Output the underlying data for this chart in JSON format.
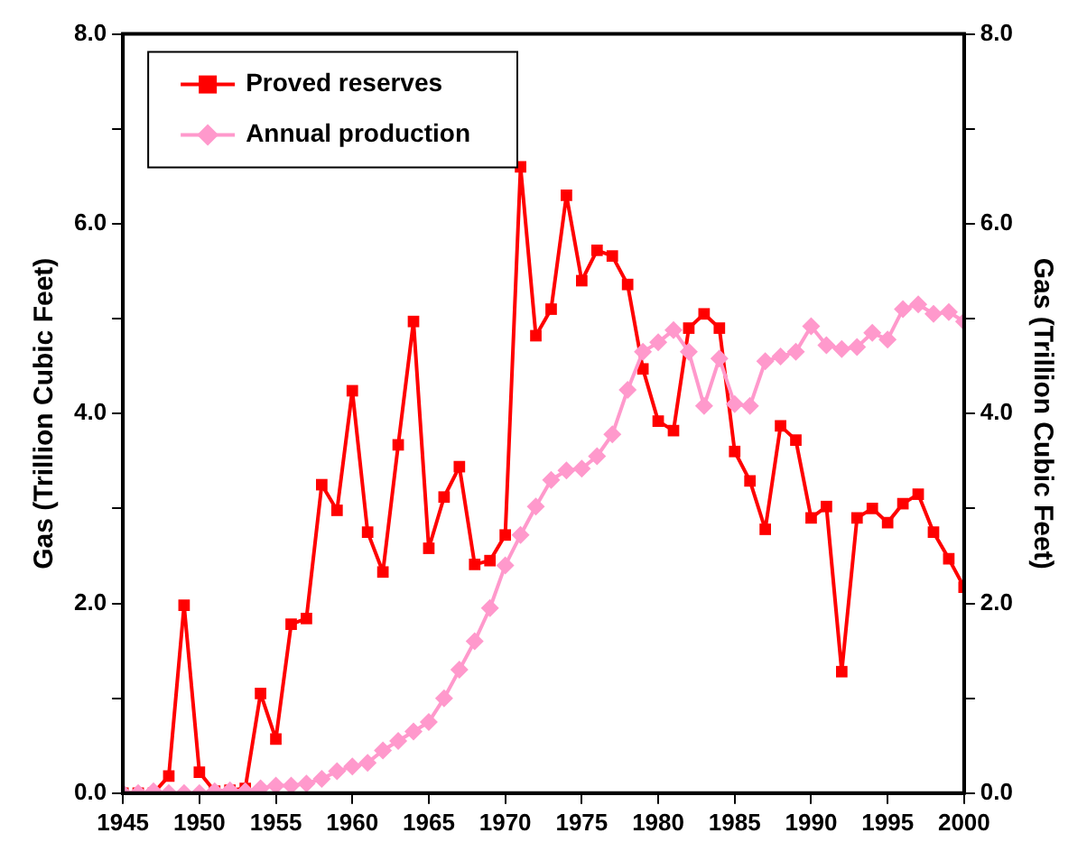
{
  "chart_data": {
    "type": "line",
    "x": [
      1945,
      1946,
      1947,
      1948,
      1949,
      1950,
      1951,
      1952,
      1953,
      1954,
      1955,
      1956,
      1957,
      1958,
      1959,
      1960,
      1961,
      1962,
      1963,
      1964,
      1965,
      1966,
      1967,
      1968,
      1969,
      1970,
      1971,
      1972,
      1973,
      1974,
      1975,
      1976,
      1977,
      1978,
      1979,
      1980,
      1981,
      1982,
      1983,
      1984,
      1985,
      1986,
      1987,
      1988,
      1989,
      1990,
      1991,
      1992,
      1993,
      1994,
      1995,
      1996,
      1997,
      1998,
      1999,
      2000
    ],
    "series": [
      {
        "name": "Proved reserves",
        "color": "#ff0000",
        "marker": "square",
        "values": [
          0,
          0,
          0,
          0.18,
          1.98,
          0.22,
          0.02,
          0.03,
          0.05,
          1.05,
          0.57,
          1.78,
          1.84,
          3.25,
          2.98,
          4.24,
          2.75,
          2.33,
          3.67,
          4.97,
          2.58,
          3.12,
          3.44,
          2.41,
          2.45,
          2.72,
          6.6,
          4.82,
          5.1,
          6.3,
          5.4,
          5.72,
          5.66,
          5.36,
          4.47,
          3.92,
          3.82,
          4.9,
          5.05,
          4.9,
          3.6,
          3.29,
          2.78,
          3.87,
          3.72,
          2.9,
          3.02,
          1.28,
          2.9,
          3.0,
          2.85,
          3.05,
          3.15,
          2.75,
          2.47,
          2.17
        ]
      },
      {
        "name": "Annual production",
        "color": "#ff99cc",
        "marker": "diamond",
        "values": [
          0,
          0,
          0.02,
          0,
          0,
          0,
          0.02,
          0.03,
          0.02,
          0.05,
          0.08,
          0.08,
          0.1,
          0.15,
          0.23,
          0.28,
          0.32,
          0.45,
          0.55,
          0.65,
          0.75,
          1.0,
          1.3,
          1.6,
          1.95,
          2.4,
          2.72,
          3.02,
          3.3,
          3.4,
          3.42,
          3.55,
          3.78,
          4.25,
          4.65,
          4.75,
          4.88,
          4.65,
          4.08,
          4.58,
          4.1,
          4.08,
          4.55,
          4.6,
          4.65,
          4.92,
          4.72,
          4.68,
          4.7,
          4.85,
          4.78,
          5.1,
          5.15,
          5.05,
          5.07,
          4.97
        ]
      }
    ],
    "xlim": [
      1945,
      2000
    ],
    "xticks": [
      1945,
      1950,
      1955,
      1960,
      1965,
      1970,
      1975,
      1980,
      1985,
      1990,
      1995,
      2000
    ],
    "ylabel": "Gas (Trillion Cubic Feet)",
    "y2label": "Gas (Trillion Cubic Feet)",
    "ylim": [
      0,
      8
    ],
    "yticks": [
      {
        "value": 0,
        "label": "0.0"
      },
      {
        "value": 1,
        "label": null
      },
      {
        "value": 2,
        "label": "2.0"
      },
      {
        "value": 3,
        "label": null
      },
      {
        "value": 4,
        "label": "4.0"
      },
      {
        "value": 5,
        "label": null
      },
      {
        "value": 6,
        "label": "6.0"
      },
      {
        "value": 7,
        "label": null
      },
      {
        "value": 8,
        "label": "8.0"
      }
    ],
    "y2lim": [
      0,
      8
    ],
    "y2ticks": [
      {
        "value": 0,
        "label": "0.0"
      },
      {
        "value": 1,
        "label": null
      },
      {
        "value": 2,
        "label": "2.0"
      },
      {
        "value": 3,
        "label": null
      },
      {
        "value": 4,
        "label": "4.0"
      },
      {
        "value": 5,
        "label": null
      },
      {
        "value": 6,
        "label": "6.0"
      },
      {
        "value": 7,
        "label": null
      },
      {
        "value": 8,
        "label": "8.0"
      }
    ],
    "grid": false,
    "legend": "top left",
    "line_style": "solid"
  }
}
